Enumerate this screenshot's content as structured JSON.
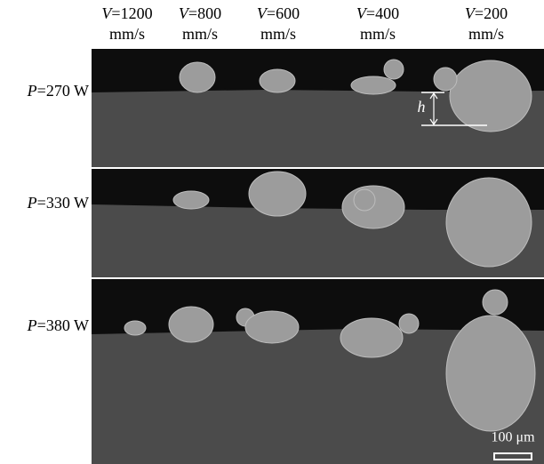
{
  "columns": [
    {
      "var": "V",
      "eq": "=1200",
      "unit": "mm/s"
    },
    {
      "var": "V",
      "eq": "=800",
      "unit": "mm/s"
    },
    {
      "var": "V",
      "eq": "=600",
      "unit": "mm/s"
    },
    {
      "var": "V",
      "eq": "=400",
      "unit": "mm/s"
    },
    {
      "var": "V",
      "eq": "=200",
      "unit": "mm/s"
    }
  ],
  "rows": [
    {
      "var": "P",
      "eq": "=270 W"
    },
    {
      "var": "P",
      "eq": "=330 W"
    },
    {
      "var": "P",
      "eq": "=380 W"
    }
  ],
  "annotation": "h",
  "scale_bar": "100 μm"
}
